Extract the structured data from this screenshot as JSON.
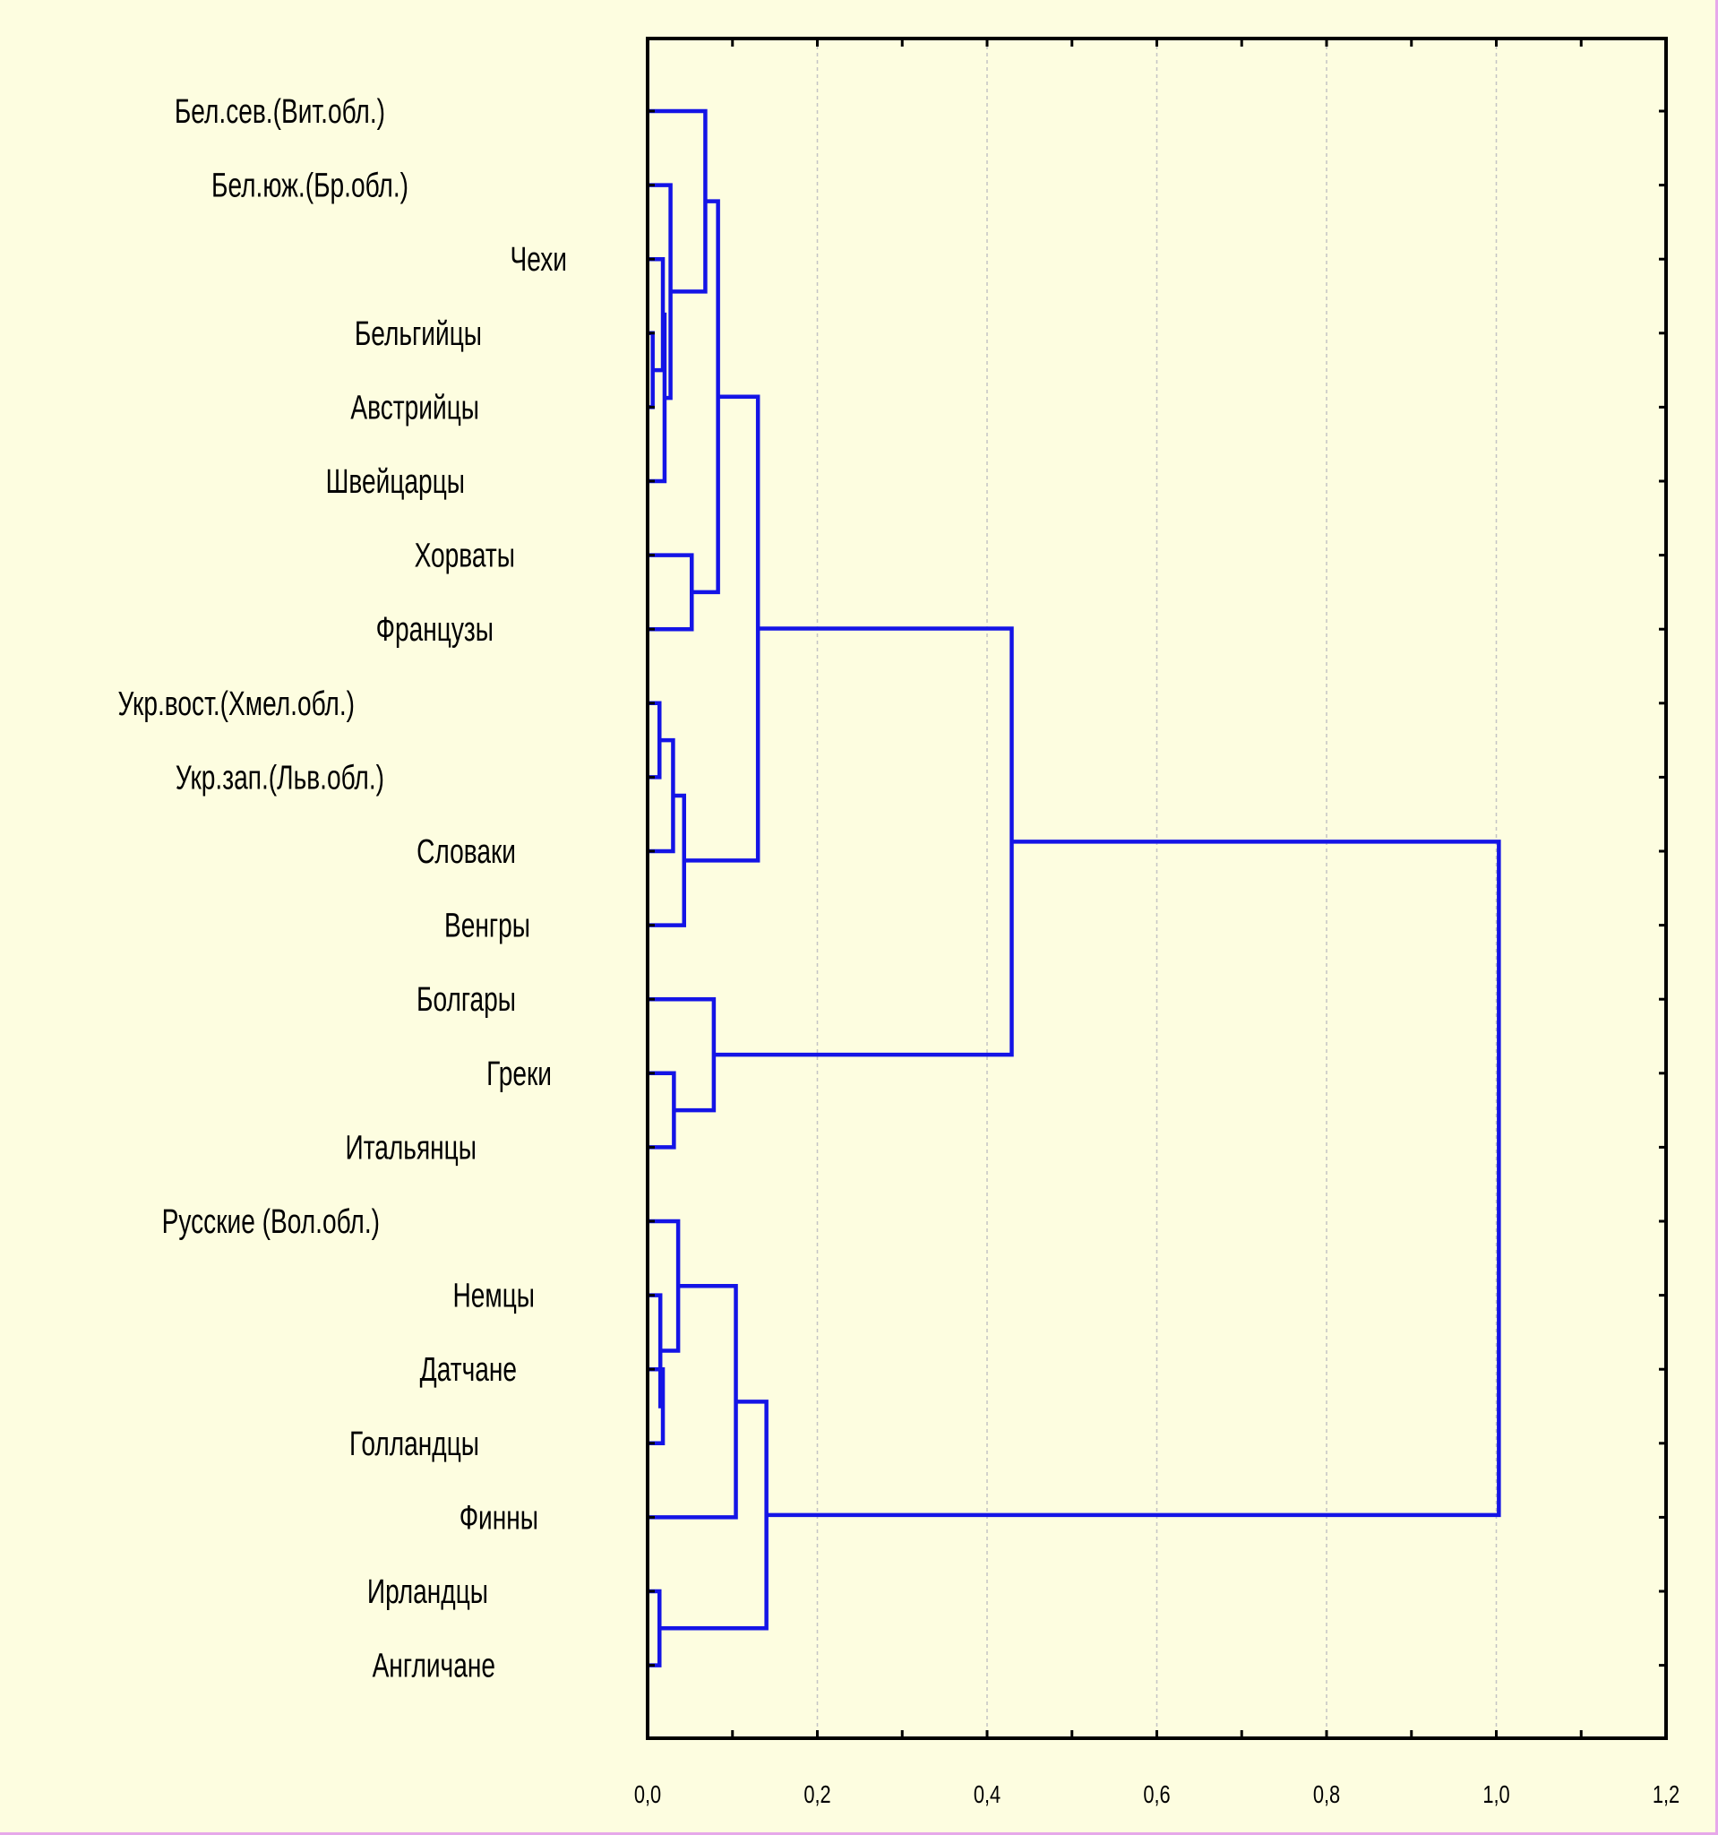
{
  "chart_data": {
    "type": "dendrogram",
    "orientation": "horizontal",
    "title": "",
    "xlabel": "",
    "ylabel": "",
    "xlim": [
      0,
      1.2
    ],
    "x_ticks": [
      0,
      0.2,
      0.4,
      0.6,
      0.8,
      1.0,
      1.2
    ],
    "x_tick_labels": [
      "0,0",
      "0,2",
      "0,4",
      "0,6",
      "0,8",
      "1,0",
      "1,2"
    ],
    "grid": "vertical-dashed",
    "line_color": "#1414e6",
    "leaves": [
      "Бел.сев.(Вит.обл.)",
      "Бел.юж.(Бр.обл.)",
      "Чехи",
      "Бельгийцы",
      "Австрийцы",
      "Швейцарцы",
      "Хорваты",
      "Французы",
      "Укр.вост.(Хмел.обл.)",
      "Укр.зап.(Льв.обл.)",
      "Словаки",
      "Венгры",
      "Болгары",
      "Греки",
      "Итальянцы",
      "Русские (Вол.обл.)",
      "Немцы",
      "Датчане",
      "Голландцы",
      "Финны",
      "Ирландцы",
      "Англичане"
    ],
    "merges": [
      {
        "a": "L3",
        "b": "L4",
        "height": 0.006
      },
      {
        "a": "C1",
        "b": "L2",
        "height": 0.018
      },
      {
        "a": "C2",
        "b": "L5",
        "height": 0.02
      },
      {
        "a": "L1",
        "b": "C3",
        "height": 0.027
      },
      {
        "a": "L0",
        "b": "C4",
        "height": 0.068
      },
      {
        "a": "L6",
        "b": "L7",
        "height": 0.052
      },
      {
        "a": "C5",
        "b": "C6",
        "height": 0.083
      },
      {
        "a": "L8",
        "b": "L9",
        "height": 0.014
      },
      {
        "a": "C8",
        "b": "L10",
        "height": 0.03
      },
      {
        "a": "C9",
        "b": "L11",
        "height": 0.043
      },
      {
        "a": "C7",
        "b": "C10",
        "height": 0.13
      },
      {
        "a": "L13",
        "b": "L14",
        "height": 0.031
      },
      {
        "a": "L12",
        "b": "C12",
        "height": 0.078
      },
      {
        "a": "C11",
        "b": "C13",
        "height": 0.429
      },
      {
        "a": "L17",
        "b": "L18",
        "height": 0.018
      },
      {
        "a": "L16",
        "b": "C15",
        "height": 0.015
      },
      {
        "a": "L15",
        "b": "C16",
        "height": 0.036
      },
      {
        "a": "C17",
        "b": "L19",
        "height": 0.104
      },
      {
        "a": "L20",
        "b": "L21",
        "height": 0.014
      },
      {
        "a": "C18",
        "b": "C19",
        "height": 0.14
      },
      {
        "a": "C14",
        "b": "C20",
        "height": 1.003
      }
    ]
  }
}
